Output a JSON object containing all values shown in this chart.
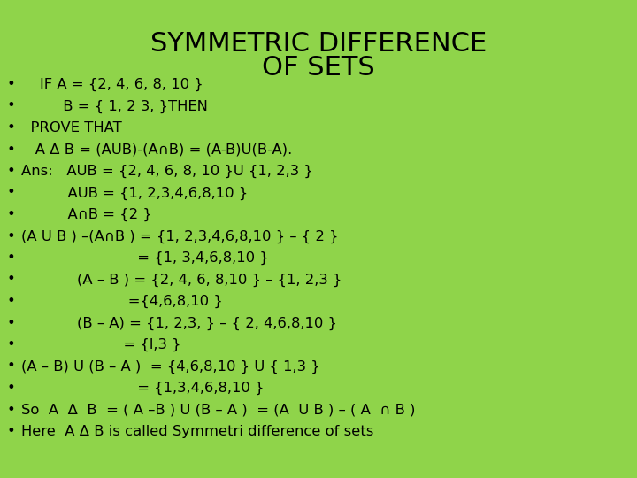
{
  "title_line1": "SYMMETRIC DIFFERENCE",
  "title_line2": "OF SETS",
  "background_color": "#8FD44A",
  "title_color": "#000000",
  "text_color": "#000000",
  "title_fontsize": 22,
  "body_fontsize": 11.8,
  "lines": [
    "    IF A = {2, 4, 6, 8, 10 }",
    "         B = { 1, 2 3, }THEN",
    "  PROVE THAT",
    "   A Δ B = (AUB)-(A∩B) = (A-B)U(B-A).",
    "Ans:   AUB = {2, 4, 6, 8, 10 }U {1, 2,3 }",
    "          AUB = {1, 2,3,4,6,8,10 }",
    "          A∩B = {2 }",
    "(A U B ) –(A∩B ) = {1, 2,3,4,6,8,10 } – { 2 }",
    "                         = {1, 3,4,6,8,10 }",
    "            (A – B ) = {2, 4, 6, 8,10 } – {1, 2,3 }",
    "                       ={4,6,8,10 }",
    "            (B – A) = {1, 2,3, } – { 2, 4,6,8,10 }",
    "                      = {l,3 }",
    "(A – B) U (B – A )  = {4,6,8,10 } U { 1,3 }",
    "                         = {1,3,4,6,8,10 }",
    "So  A  Δ  B  = ( A –B ) U (B – A )  = (A  U B ) – ( A  ∩ B )",
    "Here  A Δ B is called Symmetri difference of sets"
  ]
}
